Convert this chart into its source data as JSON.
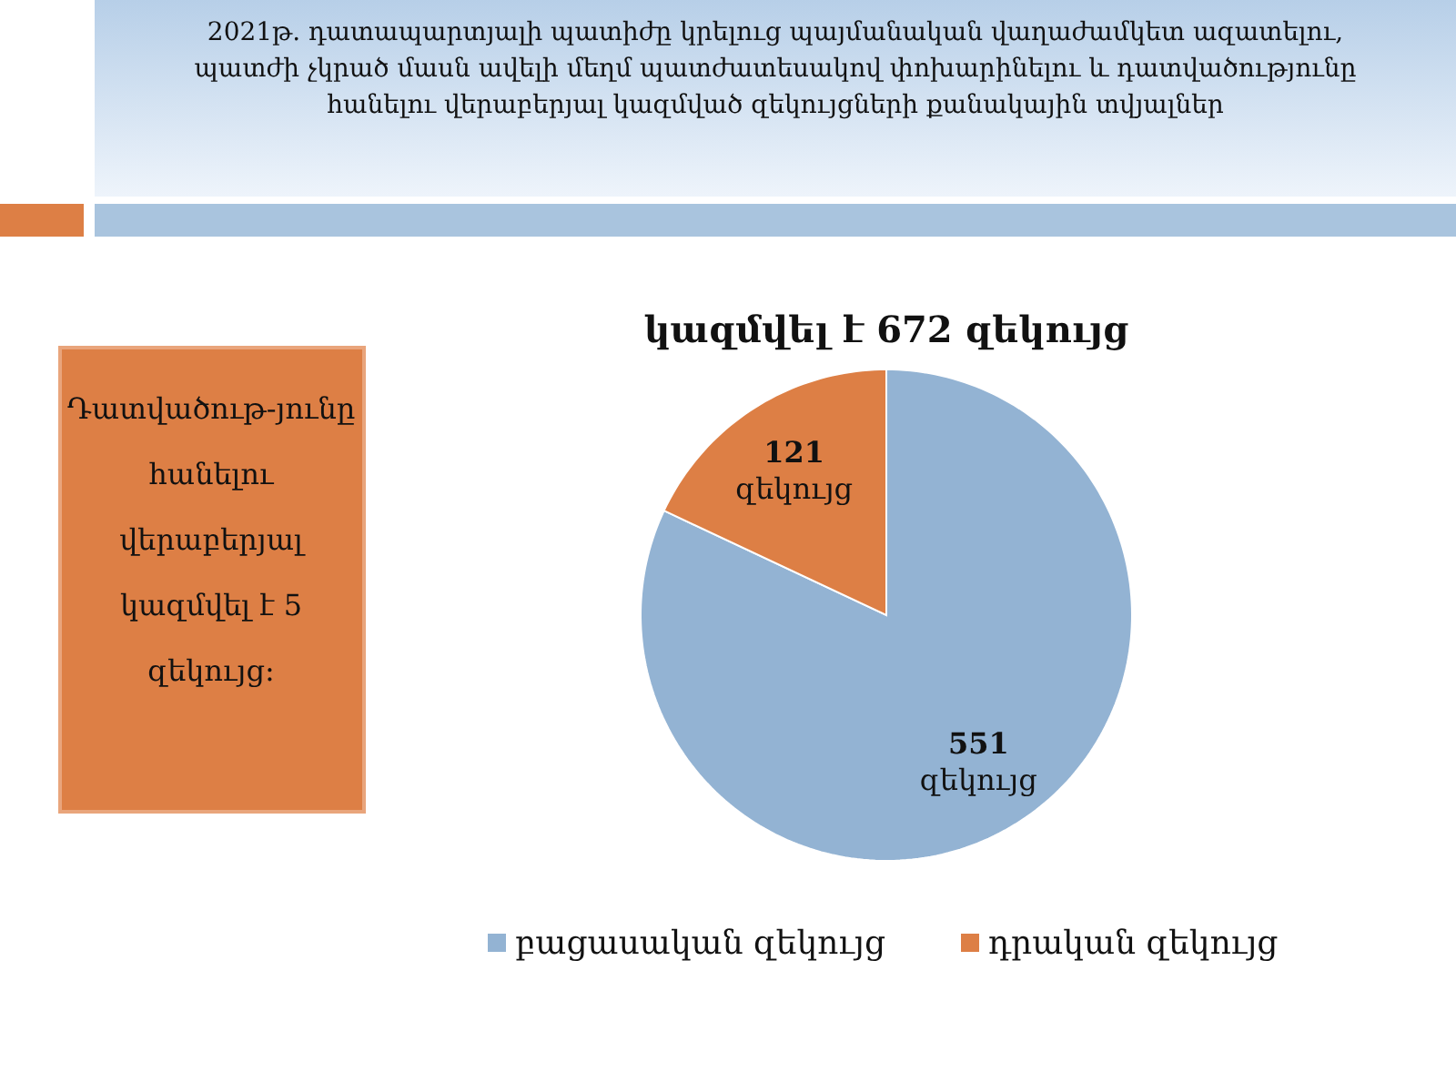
{
  "chart_data": {
    "type": "pie",
    "title": "2021թ.  դատապարտյալի պատիժը կրելուց պայմանական վաղաժամկետ ազատելու, պատժի չկրած մասն ավելի մեղմ պատժատեսակով փոխարինելու և դատվածությունը հանելու վերաբերյալ կազմված զեկույցների քանակային տվյալներ",
    "subtitle": "կազմվել է 672 զեկույց",
    "categories": [
      "բացասական զեկույց",
      "դրական զեկույց"
    ],
    "values": [
      551,
      121
    ],
    "colors": [
      "#93b3d3",
      "#dd7f45"
    ],
    "value_labels": [
      "551 զեկույց",
      "121 զեկույց"
    ],
    "legend": "bottom",
    "annotations": [
      "Դատվածութ-յունը հանելու վերաբերյալ կազմվել է 5 զեկույց:"
    ]
  }
}
